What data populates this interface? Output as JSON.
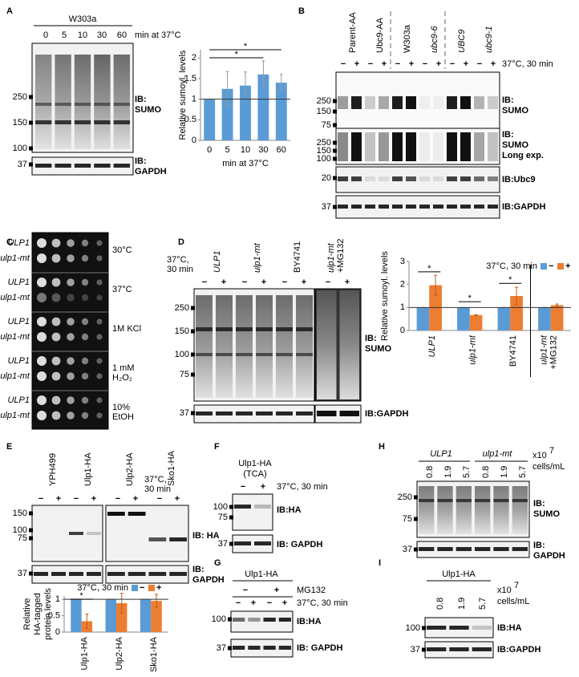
{
  "panels": {
    "A": {
      "label": "A",
      "strain": "W303a",
      "lanes": [
        "0",
        "5",
        "10",
        "30",
        "60"
      ],
      "lane_caption": "min at 37°C",
      "markers": [
        "250",
        "150",
        "100"
      ],
      "markers_gapdh": [
        "37"
      ],
      "ib_sumo": [
        "IB:",
        "SUMO"
      ],
      "ib_gapdh": [
        "IB:",
        "GAPDH"
      ]
    },
    "B": {
      "label": "B",
      "strains": [
        "Parent-AA",
        "Ubc9-AA",
        "W303a",
        "ubc9-6",
        "UBC9",
        "ubc9-1"
      ],
      "lanes": [
        "−",
        "+"
      ],
      "condition": "37°C, 30 min",
      "markers_sumo": [
        "250",
        "150",
        "75"
      ],
      "markers_long": [
        "250",
        "150",
        "100"
      ],
      "markers_ubc9": [
        "20"
      ],
      "markers_gapdh": [
        "37"
      ],
      "ib_sumo": [
        "IB:",
        "SUMO"
      ],
      "ib_long": [
        "IB:",
        "SUMO",
        "Long exp."
      ],
      "ib_ubc9": "IB:Ubc9",
      "ib_gapdh": "IB:GAPDH"
    },
    "C": {
      "label": "C",
      "strains": [
        "ULP1",
        "ulp1-mt"
      ],
      "conditions": [
        [
          "30°C"
        ],
        [
          "37°C"
        ],
        [
          "1M KCl"
        ],
        [
          "1 mM",
          "H₂O₂"
        ],
        [
          "10%",
          "EtOH"
        ]
      ]
    },
    "D": {
      "label": "D",
      "strains": [
        [
          "ULP1"
        ],
        [
          "ulp1-mt"
        ],
        [
          "BY4741"
        ],
        [
          "ulp1-mt",
          "+MG132"
        ]
      ],
      "condition": [
        "37°C,",
        "30 min"
      ],
      "lanes": [
        "−",
        "+"
      ],
      "markers": [
        "250",
        "150",
        "100",
        "75"
      ],
      "markers_gapdh": [
        "37"
      ],
      "ib_sumo": [
        "IB:",
        "SUMO"
      ],
      "ib_gapdh": "IB:GAPDH"
    },
    "E": {
      "label": "E",
      "strains": [
        "YPH499",
        "Ulp1-HA",
        "Ulp2-HA",
        "Sko1-HA"
      ],
      "condition": [
        "37°C,",
        "30 min"
      ],
      "lanes": [
        "−",
        "+"
      ],
      "markers": [
        "150",
        "100",
        "75"
      ],
      "markers_gapdh": [
        "37"
      ],
      "ib_ha": "IB: HA",
      "ib_gapdh": [
        "IB:",
        "GAPDH"
      ]
    },
    "F": {
      "label": "F",
      "strain": [
        "Ulp1-HA",
        "(TCA)"
      ],
      "lanes": [
        "−",
        "+"
      ],
      "condition": "37°C, 30 min",
      "markers": [
        "100",
        "75"
      ],
      "markers_gapdh": [
        "37"
      ],
      "ib_ha": "IB:HA",
      "ib_gapdh": "IB: GAPDH"
    },
    "G": {
      "label": "G",
      "strain": "Ulp1-HA",
      "treatment": [
        "−",
        "+"
      ],
      "treatment_name": "MG132",
      "lanes": [
        "−",
        "+"
      ],
      "condition": "37°C, 30 min",
      "markers": [
        "100"
      ],
      "markers_gapdh": [
        "37"
      ],
      "ib_ha": "IB:HA",
      "ib_gapdh": "IB: GAPDH"
    },
    "H": {
      "label": "H",
      "strains": [
        "ULP1",
        "ulp1-mt"
      ],
      "densities": [
        "0.8",
        "1.9",
        "5.7"
      ],
      "unit": {
        "base": "x10",
        "sup": "7",
        "line2": "cells/mL"
      },
      "markers": [
        "250",
        "75"
      ],
      "markers_gapdh": [
        "37"
      ],
      "ib_sumo": [
        "IB:",
        "SUMO"
      ],
      "ib_gapdh": [
        "IB:",
        "GAPDH"
      ]
    },
    "I": {
      "label": "I",
      "strain": "Ulp1-HA",
      "densities": [
        "0.8",
        "1.9",
        "5.7"
      ],
      "unit": {
        "base": "x10",
        "sup": "7",
        "line2": "cells/mL"
      },
      "markers": [
        "100"
      ],
      "markers_gapdh": [
        "37"
      ],
      "ib_ha": "IB:HA",
      "ib_gapdh": "IB:GAPDH"
    }
  },
  "chart_data": [
    {
      "type": "bar",
      "ylabel": "Relative sumoyl. levels",
      "xlabel": "min at 37°C",
      "categories": [
        "0",
        "5",
        "10",
        "30",
        "60"
      ],
      "values": [
        1,
        1.25,
        1.33,
        1.6,
        1.4
      ],
      "errors": [
        0,
        0.42,
        0.33,
        0.33,
        0.2
      ],
      "color": "#5b9bd5",
      "ylim": [
        0,
        2.2
      ],
      "yticks": [
        0,
        0.5,
        1,
        1.5,
        2
      ],
      "reference_line": 1,
      "annotations": [
        "*",
        "*"
      ]
    },
    {
      "type": "bar",
      "ylabel": "Relative sumoyl. levels",
      "legend_title": "37°C, 30 min",
      "categories": [
        [
          "ULP1"
        ],
        [
          "ulp1-mt"
        ],
        [
          "BY4741"
        ],
        [
          "ulp1-mt",
          "+MG132"
        ]
      ],
      "series": [
        {
          "name": "−",
          "color": "#5b9bd5",
          "values": [
            1,
            1,
            1,
            1
          ],
          "errors": [
            0,
            0,
            0,
            0
          ]
        },
        {
          "name": "+",
          "color": "#ed7d31",
          "values": [
            1.97,
            0.67,
            1.5,
            1.1
          ],
          "errors": [
            0.43,
            0.02,
            0.38,
            0.05
          ]
        }
      ],
      "ylim": [
        0,
        3
      ],
      "yticks": [
        0,
        1,
        2,
        3
      ],
      "reference_line": 1,
      "annotations": [
        "*",
        "*",
        "*"
      ]
    },
    {
      "type": "bar",
      "ylabel": [
        "Relative",
        "HA-tagged",
        "protein levels"
      ],
      "legend_title": "37°C, 30 min",
      "categories": [
        [
          "Ulp1-HA"
        ],
        [
          "Ulp2-HA"
        ],
        [
          "Sko1-HA"
        ]
      ],
      "series": [
        {
          "name": "−",
          "color": "#5b9bd5",
          "values": [
            1,
            1,
            1
          ],
          "errors": [
            0,
            0,
            0
          ]
        },
        {
          "name": "+",
          "color": "#ed7d31",
          "values": [
            0.33,
            0.88,
            0.95
          ],
          "errors": [
            0.22,
            0.3,
            0.2
          ]
        }
      ],
      "ylim": [
        0,
        1.1
      ],
      "yticks": [
        0,
        0.5,
        1
      ],
      "reference_line": 1,
      "annotations": [
        "*"
      ]
    }
  ]
}
